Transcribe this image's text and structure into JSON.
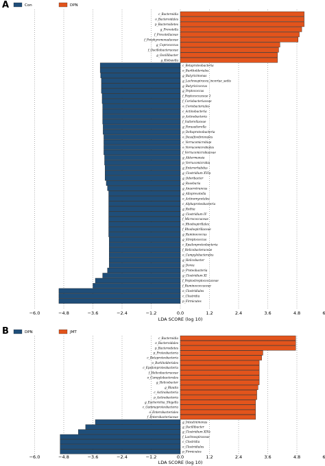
{
  "chart_data": [
    {
      "panel": "A",
      "type": "bar",
      "orientation": "horizontal",
      "xlabel": "LDA SCORE (log 10)",
      "xlim": [
        -6.0,
        6.0
      ],
      "xticks": [
        "-6.0",
        "-4.8",
        "-3.6",
        "-2.4",
        "-1.2",
        "0.0",
        "1.2",
        "2.4",
        "3.6",
        "4.8",
        "6.0"
      ],
      "grid": "vertical dotted",
      "legend": [
        {
          "name": "Con",
          "color": "#1f4e79"
        },
        {
          "name": "DPN",
          "color": "#e2541c"
        }
      ],
      "bars": [
        {
          "label": "c_Bacteroidia",
          "value": 5.1,
          "group": "DPN"
        },
        {
          "label": "o_Bacteroidales",
          "value": 5.1,
          "group": "DPN"
        },
        {
          "label": "p_Bacteroidetes",
          "value": 5.1,
          "group": "DPN"
        },
        {
          "label": "g_Prevotella",
          "value": 5.0,
          "group": "DPN"
        },
        {
          "label": "f_Prevotellaceae",
          "value": 4.9,
          "group": "DPN"
        },
        {
          "label": "f_Porphyromonadaceae",
          "value": 4.85,
          "group": "DPN"
        },
        {
          "label": "g_Coprococcus",
          "value": 4.1,
          "group": "DPN"
        },
        {
          "label": "f_Oscillobacteraceae",
          "value": 4.05,
          "group": "DPN"
        },
        {
          "label": "g_Oscillibacter",
          "value": 4.0,
          "group": "DPN"
        },
        {
          "label": "g_Klebsiella",
          "value": 4.0,
          "group": "DPN"
        },
        {
          "label": "c_Betaproteobacteria",
          "value": -3.3,
          "group": "Con"
        },
        {
          "label": "o_Burkholderiales",
          "value": -3.3,
          "group": "Con"
        },
        {
          "label": "g_Butyricimonas",
          "value": -3.28,
          "group": "Con"
        },
        {
          "label": "g_Lachnospiracea_incertae_sedis",
          "value": -3.25,
          "group": "Con"
        },
        {
          "label": "g_Butyricicoccus",
          "value": -3.25,
          "group": "Con"
        },
        {
          "label": "g_Peptococcus",
          "value": -3.25,
          "group": "Con"
        },
        {
          "label": "f_Peptococcaceae 1",
          "value": -3.22,
          "group": "Con"
        },
        {
          "label": "f_Coriobacteriaceae",
          "value": -3.22,
          "group": "Con"
        },
        {
          "label": "o_Coriobacteriales",
          "value": -3.2,
          "group": "Con"
        },
        {
          "label": "c_Actinobacteria",
          "value": -3.2,
          "group": "Con"
        },
        {
          "label": "p_Actinobacteria",
          "value": -3.2,
          "group": "Con"
        },
        {
          "label": "f_Sutterellaceae",
          "value": -3.2,
          "group": "Con"
        },
        {
          "label": "g_Parasutterella",
          "value": -3.18,
          "group": "Con"
        },
        {
          "label": "p_Deltaproteobacteria",
          "value": -3.18,
          "group": "Con"
        },
        {
          "label": "o_Desulfovibrionales",
          "value": -3.15,
          "group": "Con"
        },
        {
          "label": "c_Verrucomicrobiae",
          "value": -3.15,
          "group": "Con"
        },
        {
          "label": "o_Verrucomicrobiales",
          "value": -3.15,
          "group": "Con"
        },
        {
          "label": "f_Verrucomicrobiaceae",
          "value": -3.15,
          "group": "Con"
        },
        {
          "label": "g_Akkermansia",
          "value": -3.12,
          "group": "Con"
        },
        {
          "label": "p_Verrucomicrobia",
          "value": -3.12,
          "group": "Con"
        },
        {
          "label": "g_Enterorhabdus",
          "value": -3.1,
          "group": "Con"
        },
        {
          "label": "g_Clostridium XVIa",
          "value": -3.1,
          "group": "Con"
        },
        {
          "label": "g_Odoribacter",
          "value": -3.1,
          "group": "Con"
        },
        {
          "label": "g_Roseburia",
          "value": -3.05,
          "group": "Con"
        },
        {
          "label": "g_Anaerotruncus",
          "value": -3.0,
          "group": "Con"
        },
        {
          "label": "g_Alloprevotella",
          "value": -2.95,
          "group": "Con"
        },
        {
          "label": "o_Actinomycetales",
          "value": -2.95,
          "group": "Con"
        },
        {
          "label": "c_Alphaproteobacteria",
          "value": -2.95,
          "group": "Con"
        },
        {
          "label": "g_Rothia",
          "value": -2.95,
          "group": "Con"
        },
        {
          "label": "g_Clostridium IV",
          "value": -2.95,
          "group": "Con"
        },
        {
          "label": "f_Micrococcaceae",
          "value": -2.95,
          "group": "Con"
        },
        {
          "label": "o_Rhodospirillales",
          "value": -2.95,
          "group": "Con"
        },
        {
          "label": "f_Rhodospirillaceae",
          "value": -2.95,
          "group": "Con"
        },
        {
          "label": "g_Ruminococcus",
          "value": -2.95,
          "group": "Con"
        },
        {
          "label": "g_Streptococcus",
          "value": -2.93,
          "group": "Con"
        },
        {
          "label": "c_Epsilonproteobacteria",
          "value": -2.93,
          "group": "Con"
        },
        {
          "label": "f_Helicobacteraceae",
          "value": -2.93,
          "group": "Con"
        },
        {
          "label": "o_Campylobacterales",
          "value": -2.93,
          "group": "Con"
        },
        {
          "label": "g_Helicobacter",
          "value": -2.93,
          "group": "Con"
        },
        {
          "label": "g_Dorea",
          "value": -2.93,
          "group": "Con"
        },
        {
          "label": "p_Proteobacteria",
          "value": -3.0,
          "group": "Con"
        },
        {
          "label": "g_Clostridium XI",
          "value": -3.2,
          "group": "Con"
        },
        {
          "label": "f_Peptostreptococcaceae",
          "value": -3.5,
          "group": "Con"
        },
        {
          "label": "f_Ruminococcaceae",
          "value": -3.6,
          "group": "Con"
        },
        {
          "label": "o_Clostridiales",
          "value": -5.0,
          "group": "Con"
        },
        {
          "label": "c_Clostridia",
          "value": -5.0,
          "group": "Con"
        },
        {
          "label": "p_Firmicutes",
          "value": -5.0,
          "group": "Con"
        }
      ]
    },
    {
      "panel": "B",
      "type": "bar",
      "orientation": "horizontal",
      "xlabel": "LDA SCORE (log 10)",
      "xlim": [
        -6.0,
        6.0
      ],
      "xticks": [
        "-6.0",
        "-4.8",
        "-3.6",
        "-2.4",
        "-1.2",
        "0.0",
        "1.2",
        "2.4",
        "3.6",
        "4.8",
        "6.0"
      ],
      "grid": "vertical dotted",
      "legend": [
        {
          "name": "DPN",
          "color": "#1f4e79"
        },
        {
          "name": "JMT",
          "color": "#e2541c"
        }
      ],
      "bars": [
        {
          "label": "c_Bacteroidia",
          "value": 4.75,
          "group": "JMT"
        },
        {
          "label": "o_Bacteroidales",
          "value": 4.75,
          "group": "JMT"
        },
        {
          "label": "p_Bacteroidetes",
          "value": 4.75,
          "group": "JMT"
        },
        {
          "label": "p_Proteobacteria",
          "value": 3.4,
          "group": "JMT"
        },
        {
          "label": "c_Betaproteobacteria",
          "value": 3.35,
          "group": "JMT"
        },
        {
          "label": "o_Burkholderiales",
          "value": 3.25,
          "group": "JMT"
        },
        {
          "label": "c_Epsilonproteobacteria",
          "value": 3.25,
          "group": "JMT"
        },
        {
          "label": "f_Helicobacteraceae",
          "value": 3.25,
          "group": "JMT"
        },
        {
          "label": "o_Campylobacterales",
          "value": 3.25,
          "group": "JMT"
        },
        {
          "label": "g_Helicobacter",
          "value": 3.25,
          "group": "JMT"
        },
        {
          "label": "g_Blautia",
          "value": 3.2,
          "group": "JMT"
        },
        {
          "label": "c_Actinobacteria",
          "value": 3.15,
          "group": "JMT"
        },
        {
          "label": "p_Actinobacteria",
          "value": 3.15,
          "group": "JMT"
        },
        {
          "label": "g_Escherichia_Shigella",
          "value": 3.1,
          "group": "JMT"
        },
        {
          "label": "c_Gammaproteobacteria",
          "value": 3.1,
          "group": "JMT"
        },
        {
          "label": "o_Enterobacteriales",
          "value": 3.1,
          "group": "JMT"
        },
        {
          "label": "f_Enterobacteriaceae",
          "value": 3.1,
          "group": "JMT"
        },
        {
          "label": "g_Intestinimonas",
          "value": -3.5,
          "group": "DPN"
        },
        {
          "label": "g_Oscillibacter",
          "value": -3.9,
          "group": "DPN"
        },
        {
          "label": "g_Clostridium XIVa",
          "value": -4.2,
          "group": "DPN"
        },
        {
          "label": "f_Lachnospiraceae",
          "value": -4.95,
          "group": "DPN"
        },
        {
          "label": "c_Clostridia",
          "value": -4.95,
          "group": "DPN"
        },
        {
          "label": "o_Clostridiales",
          "value": -4.95,
          "group": "DPN"
        },
        {
          "label": "p_Firmicutes",
          "value": -4.95,
          "group": "DPN"
        }
      ]
    }
  ]
}
